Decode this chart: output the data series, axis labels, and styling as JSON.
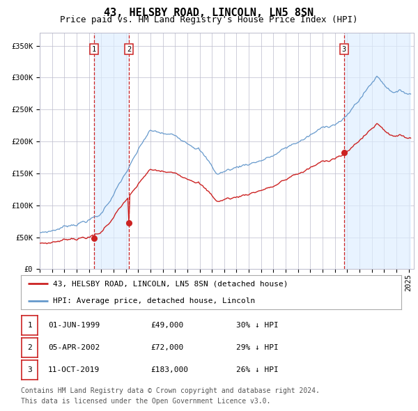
{
  "title": "43, HELSBY ROAD, LINCOLN, LN5 8SN",
  "subtitle": "Price paid vs. HM Land Registry's House Price Index (HPI)",
  "ylim": [
    0,
    370000
  ],
  "yticks": [
    0,
    50000,
    100000,
    150000,
    200000,
    250000,
    300000,
    350000
  ],
  "ytick_labels": [
    "£0",
    "£50K",
    "£100K",
    "£150K",
    "£200K",
    "£250K",
    "£300K",
    "£350K"
  ],
  "hpi_color": "#6699cc",
  "price_color": "#cc2222",
  "vline_color": "#cc2222",
  "shade_color": "#ddeeff",
  "grid_color": "#bbbbcc",
  "transaction_prices": [
    49000,
    72000,
    183000
  ],
  "transaction_labels": [
    "1",
    "2",
    "3"
  ],
  "legend_line1": "43, HELSBY ROAD, LINCOLN, LN5 8SN (detached house)",
  "legend_line2": "HPI: Average price, detached house, Lincoln",
  "table_rows": [
    [
      "1",
      "01-JUN-1999",
      "£49,000",
      "30% ↓ HPI"
    ],
    [
      "2",
      "05-APR-2002",
      "£72,000",
      "29% ↓ HPI"
    ],
    [
      "3",
      "11-OCT-2019",
      "£183,000",
      "26% ↓ HPI"
    ]
  ],
  "footnote1": "Contains HM Land Registry data © Crown copyright and database right 2024.",
  "footnote2": "This data is licensed under the Open Government Licence v3.0.",
  "title_fontsize": 11,
  "subtitle_fontsize": 9,
  "tick_fontsize": 7.5,
  "legend_fontsize": 8,
  "table_fontsize": 8,
  "footnote_fontsize": 7
}
